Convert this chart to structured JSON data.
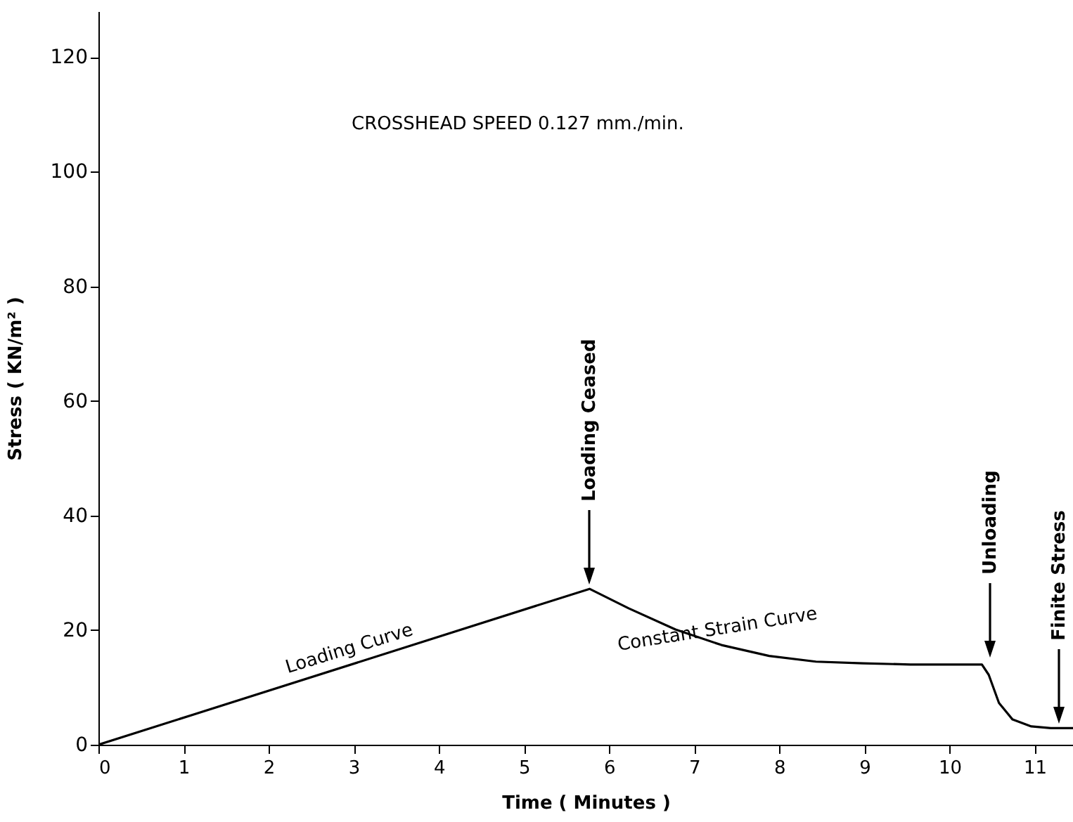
{
  "chart_data": {
    "type": "line",
    "xlabel": "Time ( Minutes )",
    "ylabel": "Stress      ( KN/m² )",
    "x": [
      0,
      5.77,
      6.23,
      6.78,
      7.32,
      7.88,
      8.43,
      8.98,
      9.54,
      10.38,
      10.46,
      10.58,
      10.74,
      10.96,
      11.19,
      11.45
    ],
    "series": [
      {
        "color": "#000000",
        "values": [
          0,
          27.2,
          23.8,
          20.1,
          17.4,
          15.5,
          14.5,
          14.2,
          14.0,
          14.0,
          12.2,
          7.3,
          4.4,
          3.2,
          2.9,
          2.9
        ]
      }
    ],
    "xlim": [
      0,
      11.45
    ],
    "ylim": [
      0,
      128
    ],
    "xticks": [
      0,
      1,
      2,
      3,
      4,
      5,
      6,
      7,
      8,
      9,
      10,
      11
    ],
    "yticks": [
      0,
      20,
      40,
      60,
      80,
      100,
      120
    ],
    "grid": false,
    "line_style": "solid",
    "annotations": [
      "CROSSHEAD SPEED 0.127 mm./min.",
      {
        "text": "Loading Curve",
        "x": 3,
        "y": 14.2
      },
      {
        "text": "Constant Strain Curve",
        "x": 7.3,
        "y": 17.5
      },
      "Loading Ceased",
      "Unloading",
      "Finite Stress"
    ]
  }
}
